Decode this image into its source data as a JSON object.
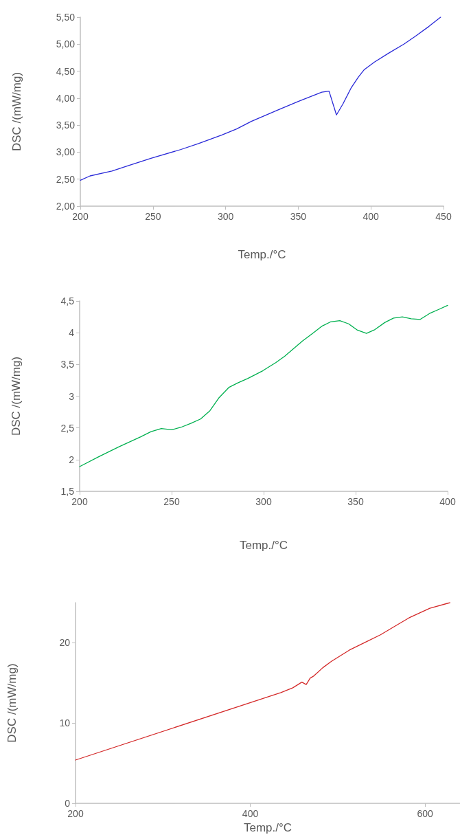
{
  "chart_data": [
    {
      "type": "line",
      "xlabel": "Temp./°C",
      "ylabel": "DSC /(mW/mg)",
      "xlim": [
        200,
        450
      ],
      "xticks": [
        200,
        250,
        300,
        350,
        400,
        450
      ],
      "ylim": [
        2,
        5.5
      ],
      "yticks": [
        {
          "value": 2,
          "label": "2,00"
        },
        {
          "value": 2.5,
          "label": "2,50"
        },
        {
          "value": 3,
          "label": "3,00"
        },
        {
          "value": 3.5,
          "label": "3,50"
        },
        {
          "value": 4,
          "label": "4,00"
        },
        {
          "value": 4.5,
          "label": "4,50"
        },
        {
          "value": 5,
          "label": "5,00"
        },
        {
          "value": 5.5,
          "label": "5,50"
        }
      ],
      "grid": false,
      "marker": "none",
      "line_style": "solid",
      "series": [
        {
          "color": "#2a2ad8",
          "x": [
            200,
            206.7,
            221.8,
            232.9,
            249,
            269.3,
            281.4,
            297.5,
            307.6,
            317.7,
            335.9,
            350,
            366.2,
            371.2,
            376.3,
            380.7,
            386.4,
            391.4,
            395.5,
            402.5,
            412.6,
            422.7,
            430.8,
            440,
            448
          ],
          "values": [
            2.48,
            2.56,
            2.65,
            2.75,
            2.89,
            3.05,
            3.16,
            3.32,
            3.43,
            3.57,
            3.78,
            3.94,
            4.11,
            4.13,
            3.69,
            3.89,
            4.19,
            4.39,
            4.53,
            4.67,
            4.84,
            5.0,
            5.15,
            5.33,
            5.5
          ]
        }
      ]
    },
    {
      "type": "line",
      "xlabel": "Temp./°C",
      "ylabel": "DSC /(mW/mg)",
      "xlim": [
        200,
        400
      ],
      "xticks": [
        200,
        250,
        300,
        350,
        400
      ],
      "ylim": [
        1.5,
        4.5
      ],
      "yticks": [
        {
          "value": 1.5,
          "label": "1,5"
        },
        2,
        {
          "value": 2.5,
          "label": "2,5"
        },
        3,
        {
          "value": 3.5,
          "label": "3,5"
        },
        4,
        {
          "value": 4.5,
          "label": "4,5"
        }
      ],
      "grid": false,
      "marker": "none",
      "line_style": "solid",
      "series": [
        {
          "color": "#00b04f",
          "x": [
            200,
            210,
            221.2,
            233.2,
            238.8,
            244.4,
            250,
            255.1,
            260.4,
            265.7,
            270.8,
            275.6,
            281.2,
            286,
            291.5,
            299.5,
            306.7,
            311.5,
            316.3,
            321.1,
            326.7,
            331.5,
            336.3,
            341.4,
            346.2,
            351,
            355.9,
            360.5,
            365.8,
            370.6,
            375.4,
            380.2,
            385.1,
            390.6,
            395.4,
            400
          ],
          "values": [
            1.89,
            2.04,
            2.2,
            2.36,
            2.44,
            2.49,
            2.47,
            2.51,
            2.57,
            2.64,
            2.77,
            2.97,
            3.14,
            3.21,
            3.28,
            3.4,
            3.53,
            3.63,
            3.75,
            3.87,
            3.99,
            4.1,
            4.17,
            4.19,
            4.14,
            4.04,
            3.99,
            4.05,
            4.16,
            4.23,
            4.25,
            4.22,
            4.21,
            4.31,
            4.37,
            4.43
          ]
        }
      ]
    },
    {
      "type": "line",
      "xlabel": "Temp./°C",
      "ylabel": "DSC /(mW/mg)",
      "xlim": [
        200,
        640
      ],
      "xticks": [
        200,
        400,
        600
      ],
      "ylim": [
        0,
        25
      ],
      "yticks": [
        0,
        10,
        20
      ],
      "grid": false,
      "marker": "none",
      "line_style": "solid",
      "series": [
        {
          "color": "#d42a2a",
          "x": [
            200,
            435,
            448.7,
            459,
            464,
            468.5,
            473,
            483,
            493,
            513.5,
            534,
            549,
            564.5,
            581.5,
            605.5,
            628.5
          ],
          "values": [
            5.4,
            13.8,
            14.4,
            15.1,
            14.8,
            15.6,
            15.9,
            16.9,
            17.7,
            19.1,
            20.2,
            21.0,
            22.0,
            23.1,
            24.3,
            25.0
          ]
        }
      ]
    }
  ]
}
